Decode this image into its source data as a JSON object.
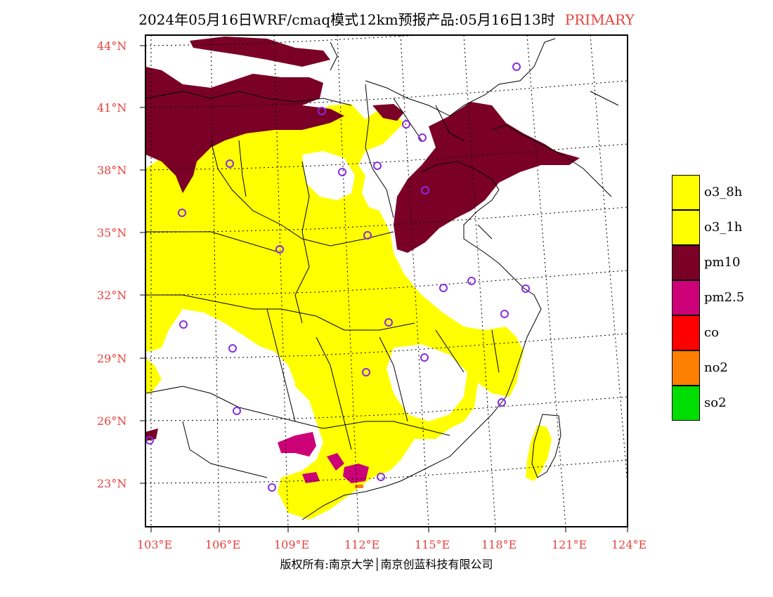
{
  "title": {
    "main": "2024年05月16日WRF/cmaq模式12km预报产品:05月16日13时",
    "tag": "PRIMARY"
  },
  "latitudes": [
    "44°N",
    "41°N",
    "38°N",
    "35°N",
    "32°N",
    "29°N",
    "26°N",
    "23°N"
  ],
  "longitudes": [
    "103°E",
    "106°E",
    "109°E",
    "112°E",
    "115°E",
    "118°E",
    "121°E",
    "124°E"
  ],
  "legend": [
    {
      "label": "o3_8h",
      "color": "#ffff00"
    },
    {
      "label": "o3_1h",
      "color": "#ffff00"
    },
    {
      "label": "pm10",
      "color": "#7a0028"
    },
    {
      "label": "pm2.5",
      "color": "#cc0077"
    },
    {
      "label": "co",
      "color": "#ff0000"
    },
    {
      "label": "no2",
      "color": "#ff7f00"
    },
    {
      "label": "so2",
      "color": "#00dd00"
    }
  ],
  "footer": "版权所有:南京大学│南京创蓝科技有限公司"
}
